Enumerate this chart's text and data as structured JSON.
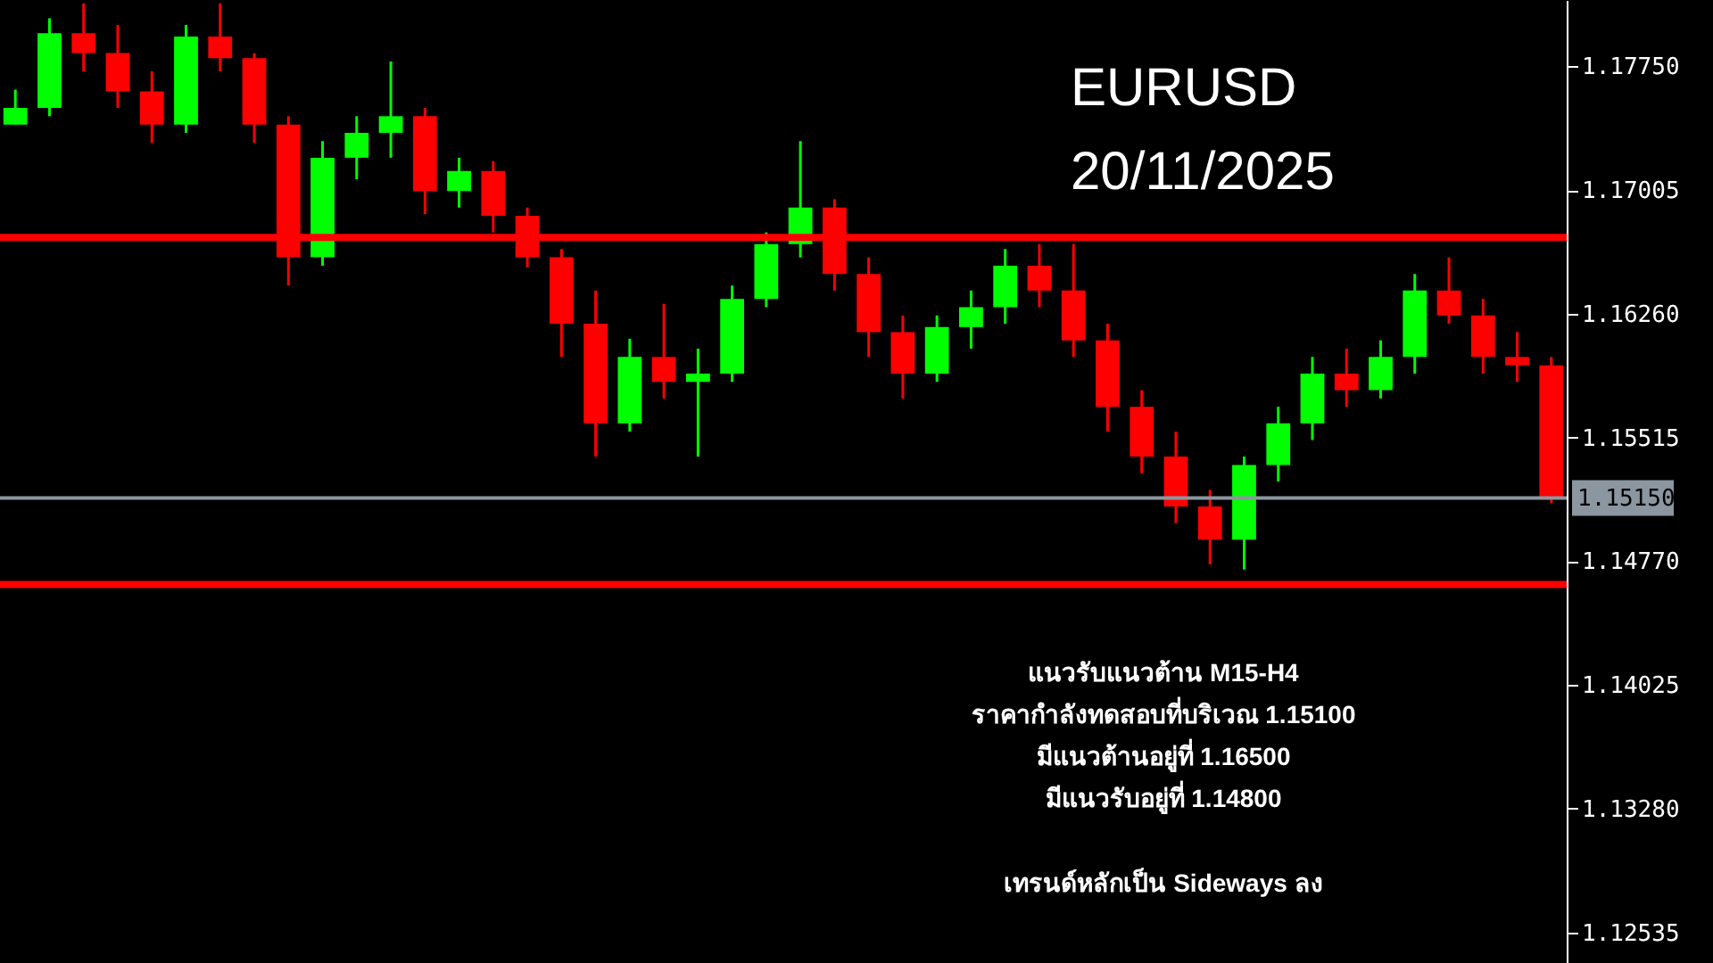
{
  "chart_data": {
    "type": "candlestick",
    "title": "EURUSD",
    "subtitle": "20/11/2025",
    "categories": [
      null,
      null,
      null,
      null,
      null,
      null,
      null,
      null,
      null,
      null,
      null,
      null,
      null,
      null,
      null,
      null,
      null,
      null,
      null,
      null,
      null,
      null,
      null,
      null,
      null,
      null,
      null,
      null,
      null,
      null,
      null,
      null,
      null,
      null,
      null,
      null,
      null,
      null,
      null,
      null,
      null,
      null,
      null,
      null,
      null,
      null
    ],
    "ohlc": [
      [
        1.174,
        1.1761,
        1.174,
        1.175
      ],
      [
        1.175,
        1.1804,
        1.1745,
        1.1795
      ],
      [
        1.1795,
        1.1813,
        1.1772,
        1.1783
      ],
      [
        1.1783,
        1.18,
        1.175,
        1.176
      ],
      [
        1.176,
        1.1772,
        1.1729,
        1.174
      ],
      [
        1.174,
        1.18,
        1.1735,
        1.1793
      ],
      [
        1.1793,
        1.1813,
        1.1772,
        1.178
      ],
      [
        1.178,
        1.1783,
        1.1729,
        1.174
      ],
      [
        1.174,
        1.1745,
        1.1643,
        1.166
      ],
      [
        1.166,
        1.173,
        1.1655,
        1.172
      ],
      [
        1.172,
        1.1745,
        1.1707,
        1.1735
      ],
      [
        1.1735,
        1.1778,
        1.172,
        1.1745
      ],
      [
        1.1745,
        1.175,
        1.1686,
        1.17
      ],
      [
        1.17,
        1.172,
        1.169,
        1.1712
      ],
      [
        1.1712,
        1.1718,
        1.1675,
        1.1685
      ],
      [
        1.1685,
        1.169,
        1.1654,
        1.166
      ],
      [
        1.166,
        1.1665,
        1.16,
        1.162
      ],
      [
        1.162,
        1.164,
        1.154,
        1.156
      ],
      [
        1.156,
        1.1611,
        1.1555,
        1.16
      ],
      [
        1.16,
        1.1632,
        1.1575,
        1.1585
      ],
      [
        1.1585,
        1.1605,
        1.154,
        1.159
      ],
      [
        1.159,
        1.1643,
        1.1585,
        1.1635
      ],
      [
        1.1635,
        1.1675,
        1.163,
        1.1668
      ],
      [
        1.1668,
        1.173,
        1.166,
        1.169
      ],
      [
        1.169,
        1.1695,
        1.164,
        1.165
      ],
      [
        1.165,
        1.166,
        1.16,
        1.1615
      ],
      [
        1.1615,
        1.1625,
        1.1575,
        1.159
      ],
      [
        1.159,
        1.1625,
        1.1585,
        1.1618
      ],
      [
        1.1618,
        1.164,
        1.1605,
        1.163
      ],
      [
        1.163,
        1.1665,
        1.162,
        1.1655
      ],
      [
        1.1655,
        1.1668,
        1.163,
        1.164
      ],
      [
        1.164,
        1.1668,
        1.16,
        1.161
      ],
      [
        1.161,
        1.162,
        1.1555,
        1.157
      ],
      [
        1.157,
        1.158,
        1.153,
        1.154
      ],
      [
        1.154,
        1.1555,
        1.15,
        1.151
      ],
      [
        1.151,
        1.152,
        1.1475,
        1.149
      ],
      [
        1.149,
        1.154,
        1.1472,
        1.1535
      ],
      [
        1.1535,
        1.157,
        1.1525,
        1.156
      ],
      [
        1.156,
        1.16,
        1.155,
        1.159
      ],
      [
        1.159,
        1.1605,
        1.157,
        1.158
      ],
      [
        1.158,
        1.161,
        1.1575,
        1.16
      ],
      [
        1.16,
        1.165,
        1.159,
        1.164
      ],
      [
        1.164,
        1.166,
        1.162,
        1.1625
      ],
      [
        1.1625,
        1.1635,
        1.159,
        1.16
      ],
      [
        1.16,
        1.1615,
        1.1585,
        1.1595
      ],
      [
        1.1595,
        1.16,
        1.1512,
        1.1515
      ]
    ],
    "colors": [
      "#00ff00",
      "#00ff00",
      "#ff0000",
      "#ff0000",
      "#ff0000",
      "#00ff00",
      "#ff0000",
      "#ff0000",
      "#ff0000",
      "#00ff00",
      "#00ff00",
      "#00ff00",
      "#ff0000",
      "#00ff00",
      "#ff0000",
      "#ff0000",
      "#ff0000",
      "#ff0000",
      "#00ff00",
      "#ff0000",
      "#00ff00",
      "#00ff00",
      "#00ff00",
      "#00ff00",
      "#ff0000",
      "#ff0000",
      "#ff0000",
      "#00ff00",
      "#00ff00",
      "#00ff00",
      "#ff0000",
      "#ff0000",
      "#ff0000",
      "#ff0000",
      "#ff0000",
      "#ff0000",
      "#00ff00",
      "#00ff00",
      "#00ff00",
      "#ff0000",
      "#00ff00",
      "#00ff00",
      "#ff0000",
      "#ff0000",
      "#ff0000",
      "#ff0000"
    ],
    "ylim": [
      1.1235,
      1.1815
    ],
    "yticks": [
      {
        "value": 1.1775,
        "label": "1.17750"
      },
      {
        "value": 1.17005,
        "label": "1.17005"
      },
      {
        "value": 1.1626,
        "label": "1.16260"
      },
      {
        "value": 1.15515,
        "label": "1.15515"
      },
      {
        "value": 1.1477,
        "label": "1.14770"
      },
      {
        "value": 1.14025,
        "label": "1.14025"
      },
      {
        "value": 1.1328,
        "label": "1.13280"
      },
      {
        "value": 1.12535,
        "label": "1.12535"
      }
    ],
    "tick_labels": "y",
    "ref_lines": [
      {
        "axis": "y",
        "value": 1.1672,
        "color": "#ff0000"
      },
      {
        "axis": "y",
        "value": 1.1463,
        "color": "#ff0000"
      },
      {
        "axis": "y",
        "value": 1.1515,
        "label": "1.15150",
        "color": "#8c96a0"
      }
    ],
    "annotations": [
      "แนวรับแนวต้าน M15-H4",
      "ราคากำลังทดสอบที่บริเวณ 1.15100",
      "มีแนวต้านอยู่ที่ 1.16500",
      "มีแนวรับอยู่ที่ 1.14800",
      "เทรนด์หลักเป็น Sideways ลง"
    ]
  }
}
